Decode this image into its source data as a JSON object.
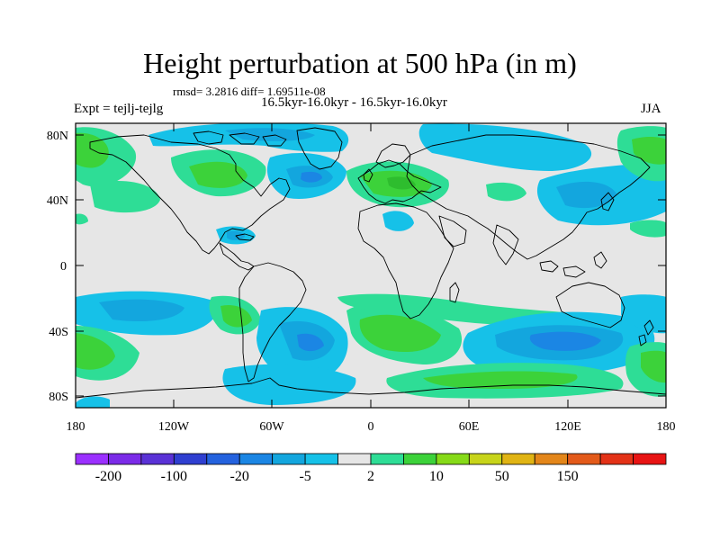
{
  "title": "Height perturbation at 500 hPa (in m)",
  "stats": "rmsd= 3.2816 diff= 1.69511e-08",
  "period": "16.5kyr-16.0kyr - 16.5kyr-16.0kyr",
  "experiment": "Expt = tejlj-tejlg",
  "season": "JJA",
  "axes": {
    "lat_labels": [
      "80N",
      "40N",
      "0",
      "40S",
      "80S"
    ],
    "lon_labels": [
      "180",
      "120W",
      "60W",
      "0",
      "60E",
      "120E",
      "180"
    ]
  },
  "colorbar": {
    "labels": [
      "-200",
      "-100",
      "-20",
      "-5",
      "2",
      "10",
      "50",
      "150"
    ],
    "colors": [
      "#9b30ff",
      "#7b2be8",
      "#5a32d6",
      "#2f3fd0",
      "#2462de",
      "#1b86e4",
      "#13a6de",
      "#16c1e8",
      "#e6e6e6",
      "#2edd96",
      "#3cd23a",
      "#86da18",
      "#c7d41a",
      "#e0b414",
      "#e3861a",
      "#e35a1a",
      "#e33217",
      "#e81414"
    ]
  },
  "palette": {
    "blue_strong": "#1b86e4",
    "blue_mid": "#13a6de",
    "blue_light": "#16c1e8",
    "green": "#3cd23a",
    "green_teal": "#2edd96",
    "neutral": "#e6e6e6"
  }
}
